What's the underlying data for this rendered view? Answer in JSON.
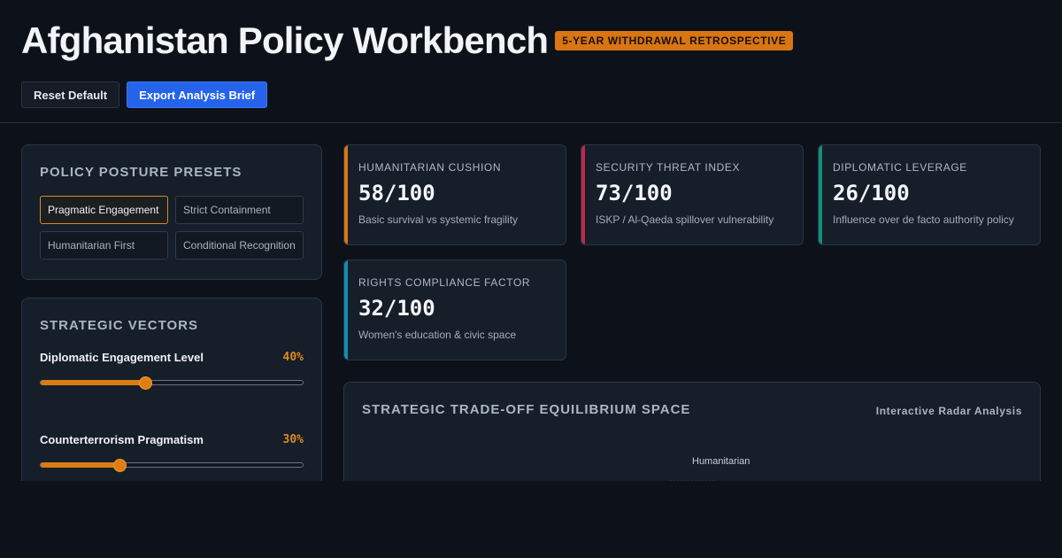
{
  "header": {
    "title": "Afghanistan Policy Workbench",
    "badge": "5-YEAR WITHDRAWAL RETROSPECTIVE"
  },
  "toolbar": {
    "reset_label": "Reset Default",
    "export_label": "Export Analysis Brief"
  },
  "presets": {
    "title": "Policy Posture Presets",
    "items": [
      {
        "label": "Pragmatic Engagement",
        "active": true
      },
      {
        "label": "Strict Containment",
        "active": false
      },
      {
        "label": "Humanitarian First",
        "active": false
      },
      {
        "label": "Conditional Recognition",
        "active": false
      }
    ]
  },
  "vectors": {
    "title": "Strategic Vectors",
    "sliders": [
      {
        "label": "Diplomatic Engagement Level",
        "value_text": "40%",
        "value": 40
      },
      {
        "label": "Counterterrorism Pragmatism",
        "value_text": "30%",
        "value": 30
      }
    ]
  },
  "metrics": [
    {
      "label": "Humanitarian Cushion",
      "value": "58/100",
      "desc": "Basic survival vs systemic fragility",
      "color": "#d97512"
    },
    {
      "label": "Security Threat Index",
      "value": "73/100",
      "desc": "ISKP / Al-Qaeda spillover vulnerability",
      "color": "#c2264d"
    },
    {
      "label": "Diplomatic Leverage",
      "value": "26/100",
      "desc": "Influence over de facto authority policy",
      "color": "#12907a"
    },
    {
      "label": "Rights Compliance Factor",
      "value": "32/100",
      "desc": "Women's education & civic space",
      "color": "#0e8fb0"
    }
  ],
  "radar": {
    "title": "Strategic Trade-off Equilibrium Space",
    "subtitle": "Interactive Radar Analysis",
    "axis_top_label": "Humanitarian"
  }
}
